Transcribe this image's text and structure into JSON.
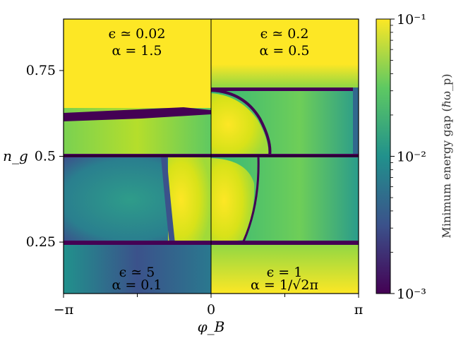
{
  "chart_data": {
    "type": "heatmap",
    "title": "",
    "xlabel": "φ_B",
    "ylabel": "n_g",
    "xlim": [
      -3.14159,
      3.14159
    ],
    "ylim": [
      0.1,
      0.9
    ],
    "x_ticks": [
      {
        "value": -3.14159,
        "label": "−π"
      },
      {
        "value": 0,
        "label": "0"
      },
      {
        "value": 3.14159,
        "label": "π"
      }
    ],
    "y_ticks": [
      {
        "value": 0.25,
        "label": "0.25"
      },
      {
        "value": 0.5,
        "label": "0.5"
      },
      {
        "value": 0.75,
        "label": "0.75"
      }
    ],
    "colorbar": {
      "label": "Minimum energy gap (ℏω_p)",
      "scale": "log",
      "range": [
        0.001,
        0.1
      ],
      "ticks": [
        {
          "value": 0.1,
          "label": "10⁻¹"
        },
        {
          "value": 0.01,
          "label": "10⁻²"
        },
        {
          "value": 0.001,
          "label": "10⁻³"
        }
      ],
      "colormap": "viridis",
      "colors": [
        "#440154",
        "#3b528b",
        "#21918c",
        "#5ec962",
        "#fde725"
      ]
    },
    "panels": [
      {
        "position": "top-left",
        "line1": "ϵ ≃ 0.02",
        "line2": "α = 1.5"
      },
      {
        "position": "top-right",
        "line1": "ϵ ≃ 0.2",
        "line2": "α = 0.5"
      },
      {
        "position": "bottom-left",
        "line1": "ϵ ≃ 5",
        "line2": "α = 0.1"
      },
      {
        "position": "bottom-right",
        "line1": "ϵ = 1",
        "line2": "α = 1/√2π"
      }
    ]
  }
}
